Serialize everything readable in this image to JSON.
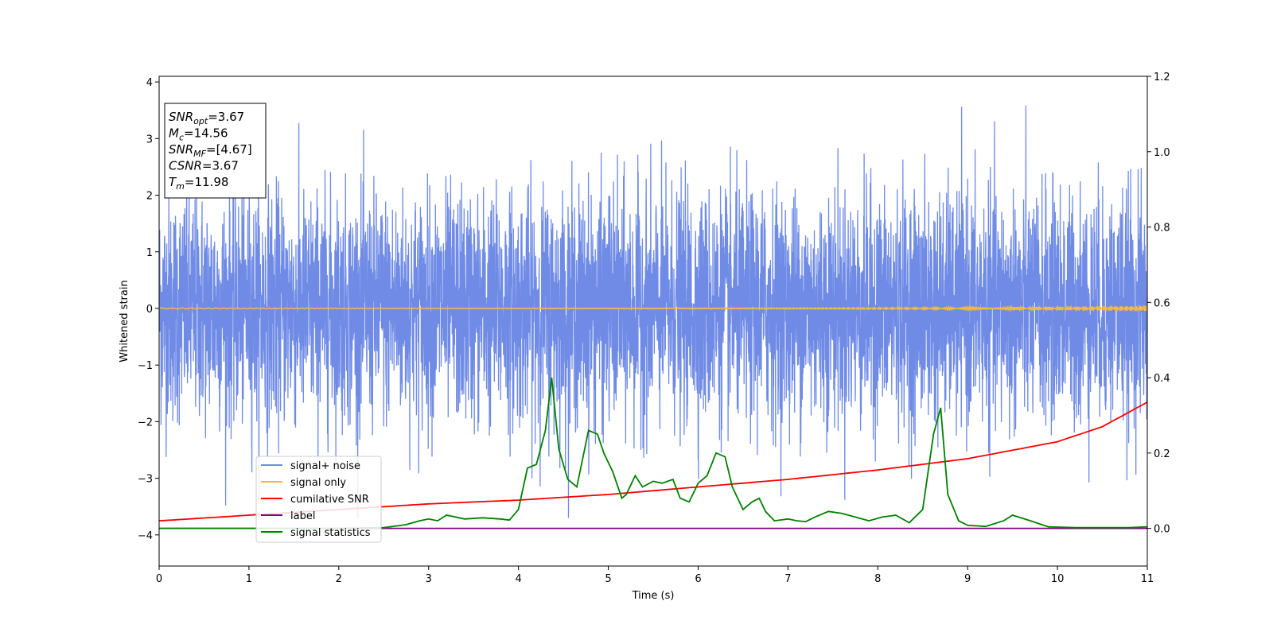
{
  "chart_data": {
    "type": "line",
    "title": "",
    "xlabel": "Time (s)",
    "ylabel": "Whitened strain",
    "xlim": [
      0,
      11
    ],
    "ylim": [
      -4.55,
      4.1
    ],
    "y2lim": [
      -0.1,
      1.2
    ],
    "xticks": [
      "0",
      "1",
      "2",
      "3",
      "4",
      "5",
      "6",
      "7",
      "8",
      "9",
      "10",
      "11"
    ],
    "yticks": [
      "−4",
      "−3",
      "−2",
      "−1",
      "0",
      "1",
      "2",
      "3",
      "4"
    ],
    "y2ticks": [
      "0.0",
      "0.2",
      "0.4",
      "0.6",
      "0.8",
      "1.0",
      "1.2"
    ],
    "grid": false,
    "legend_position": "lower-left",
    "annotation": {
      "lines": [
        {
          "sym": "SNR",
          "sub": "opt",
          "value": "=3.67"
        },
        {
          "sym": "M",
          "sub": "c",
          "value": "=14.56"
        },
        {
          "sym": "SNR",
          "sub": "MF",
          "value": "=[4.67]"
        },
        {
          "sym": "CSNR",
          "sub": "",
          "value": "=3.67"
        },
        {
          "sym": "T",
          "sub": "m",
          "value": "=11.98"
        }
      ]
    },
    "series": [
      {
        "name": "signal+ noise",
        "color": "#6f8be6",
        "axis": "left",
        "envelope": {
          "mean": 0,
          "std": 1.0,
          "max_abs": 3.7
        }
      },
      {
        "name": "signal only",
        "color": "#f5b842",
        "axis": "left",
        "values": {
          "x": [
            0,
            10,
            11
          ],
          "y": [
            0,
            0.01,
            0.04
          ]
        }
      },
      {
        "name": "cumilative SNR",
        "color": "#ff0000",
        "axis": "right",
        "x": [
          0,
          1,
          2,
          3,
          4,
          5,
          6,
          7,
          8,
          9,
          10,
          10.5,
          11
        ],
        "y": [
          0.02,
          0.035,
          0.05,
          0.065,
          0.075,
          0.09,
          0.11,
          0.13,
          0.155,
          0.185,
          0.23,
          0.27,
          0.335
        ]
      },
      {
        "name": "label",
        "color": "#800080",
        "axis": "right",
        "x": [
          0,
          11
        ],
        "y": [
          0.0,
          0.0
        ]
      },
      {
        "name": "signal statistics",
        "color": "#008000",
        "axis": "right",
        "x": [
          0,
          1,
          2,
          2.5,
          2.75,
          2.9,
          3.0,
          3.1,
          3.2,
          3.4,
          3.6,
          3.8,
          3.9,
          4.0,
          4.1,
          4.2,
          4.3,
          4.37,
          4.45,
          4.55,
          4.65,
          4.78,
          4.88,
          4.95,
          5.05,
          5.15,
          5.2,
          5.3,
          5.38,
          5.5,
          5.6,
          5.72,
          5.8,
          5.9,
          6.0,
          6.1,
          6.2,
          6.3,
          6.38,
          6.5,
          6.6,
          6.68,
          6.75,
          6.85,
          7.0,
          7.1,
          7.2,
          7.3,
          7.45,
          7.6,
          7.75,
          7.9,
          8.05,
          8.2,
          8.35,
          8.5,
          8.62,
          8.7,
          8.78,
          8.9,
          9.0,
          9.2,
          9.4,
          9.5,
          9.7,
          9.9,
          10.2,
          10.5,
          10.8,
          11
        ],
        "y": [
          0.0,
          0.0,
          0.0,
          0.002,
          0.01,
          0.02,
          0.025,
          0.02,
          0.035,
          0.025,
          0.028,
          0.025,
          0.022,
          0.05,
          0.16,
          0.17,
          0.26,
          0.4,
          0.21,
          0.13,
          0.11,
          0.26,
          0.25,
          0.2,
          0.15,
          0.08,
          0.09,
          0.14,
          0.11,
          0.125,
          0.12,
          0.13,
          0.08,
          0.07,
          0.12,
          0.14,
          0.2,
          0.19,
          0.11,
          0.05,
          0.07,
          0.08,
          0.045,
          0.02,
          0.025,
          0.02,
          0.018,
          0.03,
          0.045,
          0.04,
          0.03,
          0.02,
          0.03,
          0.035,
          0.015,
          0.05,
          0.25,
          0.32,
          0.09,
          0.02,
          0.008,
          0.005,
          0.02,
          0.035,
          0.02,
          0.004,
          0.002,
          0.002,
          0.002,
          0.004
        ]
      }
    ]
  }
}
